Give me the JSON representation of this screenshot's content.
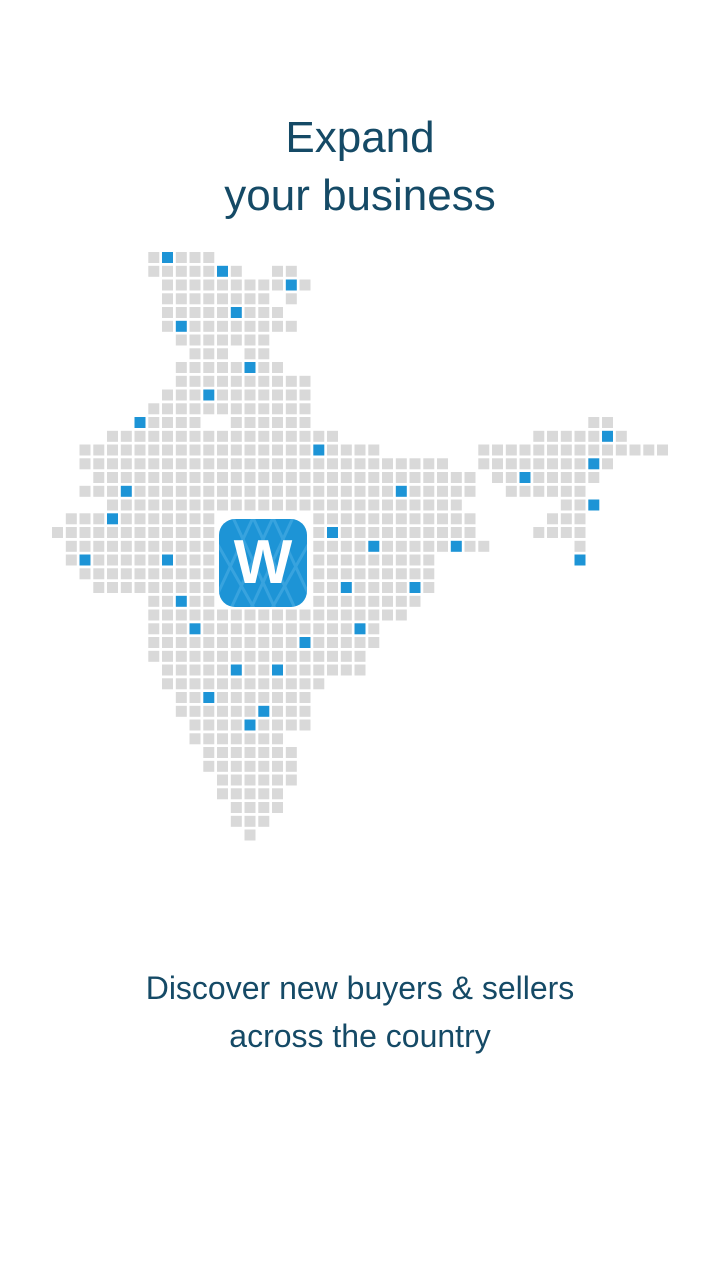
{
  "onboarding": {
    "headline_line1": "Expand",
    "headline_line2": "your business",
    "logo_letter": "W",
    "subtitle_line1": "Discover new buyers & sellers",
    "subtitle_line2": "across the country"
  },
  "colors": {
    "text": "#154a66",
    "tile": "#d9d9d9",
    "tile_faint": "#ececec",
    "highlight": "#1d94d6",
    "logo_bg": "#1d94d6"
  },
  "icons": {
    "map": "india-dot-map-icon",
    "logo": "app-logo-icon"
  }
}
